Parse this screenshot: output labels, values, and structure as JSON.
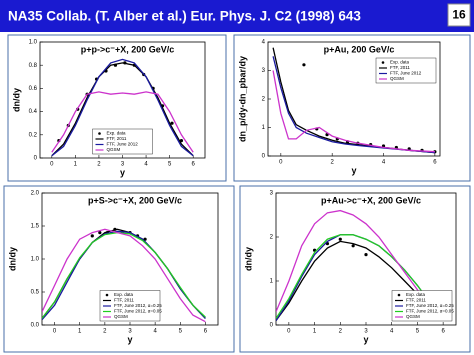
{
  "slide": {
    "title": "NA35 Collab. (T. Alber et al.) Eur. Phys. J. C2 (1998) 643",
    "page": "16"
  },
  "chart_data": [
    {
      "type": "line",
      "title": "p+p->c⁻+X, 200 GeV/c",
      "xlabel": "y",
      "ylabel": "dn/dy",
      "xlim": [
        -0.5,
        6.5
      ],
      "xticks": [
        0,
        1,
        2,
        3,
        4,
        5,
        6
      ],
      "ylim": [
        0,
        1.0
      ],
      "yticks": [
        0,
        {
          "value": 0.2,
          "label": "0.2"
        },
        {
          "value": 0.4,
          "label": "0.4"
        },
        {
          "value": 0.6,
          "label": "0.6"
        },
        {
          "value": 0.8,
          "label": "0.8"
        },
        {
          "value": 1.0,
          "label": "1.0"
        }
      ],
      "legend": "lower center",
      "series": [
        {
          "name": "Exp. data",
          "color": "#000000",
          "style": "points",
          "x": [
            0.3,
            0.7,
            1.1,
            1.5,
            1.9,
            2.3,
            2.7,
            3.1,
            3.5,
            3.9,
            4.3,
            4.7,
            5.1,
            5.5
          ],
          "values": [
            0.15,
            0.28,
            0.42,
            0.55,
            0.68,
            0.75,
            0.8,
            0.82,
            0.8,
            0.72,
            0.6,
            0.45,
            0.3,
            0.15
          ]
        },
        {
          "name": "FTF, 2011",
          "color": "#000000",
          "style": "line",
          "x": [
            0,
            0.5,
            1,
            1.5,
            2,
            2.5,
            3,
            3.5,
            4,
            4.5,
            5,
            5.5,
            6
          ],
          "values": [
            0.02,
            0.12,
            0.3,
            0.52,
            0.7,
            0.8,
            0.82,
            0.8,
            0.7,
            0.52,
            0.3,
            0.12,
            0.02
          ]
        },
        {
          "name": "FTF, June 2012",
          "color": "#1a1aa0",
          "style": "line",
          "x": [
            0,
            0.5,
            1,
            1.5,
            2,
            2.5,
            3,
            3.5,
            4,
            4.5,
            5,
            5.5,
            6
          ],
          "values": [
            0.02,
            0.1,
            0.28,
            0.5,
            0.7,
            0.82,
            0.85,
            0.82,
            0.7,
            0.5,
            0.28,
            0.1,
            0.02
          ]
        },
        {
          "name": "QGSM",
          "color": "#cc33cc",
          "style": "line",
          "x": [
            0,
            0.5,
            1,
            1.5,
            2,
            2.5,
            3,
            3.5,
            4,
            4.5,
            5,
            5.5,
            6
          ],
          "values": [
            0.05,
            0.2,
            0.4,
            0.55,
            0.57,
            0.55,
            0.56,
            0.55,
            0.57,
            0.55,
            0.4,
            0.2,
            0.05
          ]
        }
      ]
    },
    {
      "type": "line",
      "title": "p+Au, 200 GeV/c",
      "xlabel": "y",
      "ylabel": "dn_p/dy-dn_pbar/dy",
      "xlim": [
        -0.5,
        6.2
      ],
      "xticks": [
        0,
        2,
        4,
        6
      ],
      "ylim": [
        0,
        4
      ],
      "yticks": [
        0,
        1,
        2,
        3,
        4
      ],
      "legend": "upper right",
      "series": [
        {
          "name": "Exp. data",
          "color": "#000000",
          "style": "points",
          "x": [
            0.9,
            1.4,
            1.8,
            2.2,
            2.6,
            3,
            3.5,
            4,
            4.5,
            5,
            5.5,
            6
          ],
          "values": [
            3.2,
            0.95,
            0.75,
            0.6,
            0.5,
            0.45,
            0.4,
            0.35,
            0.3,
            0.25,
            0.2,
            0.15
          ]
        },
        {
          "name": "FTF, 2011",
          "color": "#000000",
          "style": "line",
          "x": [
            -0.3,
            0,
            0.3,
            0.6,
            1,
            1.5,
            2,
            2.5,
            3,
            4,
            5,
            6
          ],
          "values": [
            3.8,
            2.6,
            1.6,
            1.1,
            0.9,
            0.7,
            0.55,
            0.45,
            0.4,
            0.3,
            0.2,
            0.12
          ]
        },
        {
          "name": "FTF, June 2012",
          "color": "#1a1aa0",
          "style": "line",
          "x": [
            -0.3,
            0,
            0.3,
            0.6,
            1,
            1.5,
            2,
            2.5,
            3,
            4,
            5,
            6
          ],
          "values": [
            3.5,
            2.4,
            1.5,
            1.0,
            0.8,
            0.65,
            0.5,
            0.42,
            0.37,
            0.28,
            0.2,
            0.12
          ]
        },
        {
          "name": "QGSM",
          "color": "#cc33cc",
          "style": "line",
          "x": [
            -0.3,
            0,
            0.3,
            0.6,
            1,
            1.5,
            2,
            2.5,
            3,
            4,
            5,
            6
          ],
          "values": [
            3.0,
            1.5,
            0.6,
            0.6,
            0.9,
            1.0,
            0.7,
            0.55,
            0.45,
            0.3,
            0.2,
            0.15
          ]
        }
      ]
    },
    {
      "type": "line",
      "title": "p+S->c⁻+X, 200 GeV/c",
      "xlabel": "y",
      "ylabel": "dn/dy",
      "xlim": [
        -0.5,
        6.5
      ],
      "xticks": [
        0,
        1,
        2,
        3,
        4,
        5,
        6
      ],
      "ylim": [
        0,
        2.0
      ],
      "yticks": [
        {
          "value": 0,
          "label": "0.0"
        },
        {
          "value": 0.5,
          "label": "0.5"
        },
        {
          "value": 1.0,
          "label": "1.0"
        },
        {
          "value": 1.5,
          "label": "1.5"
        },
        {
          "value": 2.0,
          "label": "2.0"
        }
      ],
      "legend": "lower center",
      "series": [
        {
          "name": "Exp. data",
          "color": "#000000",
          "style": "points",
          "x": [
            1.5,
            1.8,
            2.1,
            2.4,
            2.7,
            3,
            3.3,
            3.6
          ],
          "values": [
            1.35,
            1.4,
            1.4,
            1.45,
            1.4,
            1.4,
            1.35,
            1.3
          ]
        },
        {
          "name": "FTF, 2011",
          "color": "#000000",
          "style": "line",
          "x": [
            -0.5,
            0,
            0.5,
            1,
            1.5,
            2,
            2.5,
            3,
            3.5,
            4,
            4.5,
            5,
            5.5,
            6
          ],
          "values": [
            0.1,
            0.35,
            0.7,
            1.0,
            1.25,
            1.4,
            1.45,
            1.4,
            1.3,
            1.1,
            0.85,
            0.55,
            0.3,
            0.1
          ]
        },
        {
          "name": "FTF, June 2012, α=0.25",
          "color": "#1a1aa0",
          "style": "line",
          "x": [
            -0.5,
            0,
            0.5,
            1,
            1.5,
            2,
            2.5,
            3,
            3.5,
            4,
            4.5,
            5,
            5.5,
            6
          ],
          "values": [
            0.08,
            0.3,
            0.65,
            1.0,
            1.25,
            1.38,
            1.42,
            1.4,
            1.3,
            1.1,
            0.85,
            0.55,
            0.3,
            0.1
          ]
        },
        {
          "name": "FTF, June 2012, α=0.05",
          "color": "#22cc22",
          "style": "line",
          "x": [
            -0.5,
            0,
            0.5,
            1,
            1.5,
            2,
            2.5,
            3,
            3.5,
            4,
            4.5,
            5,
            5.5,
            6
          ],
          "values": [
            0.1,
            0.35,
            0.7,
            1.02,
            1.25,
            1.37,
            1.4,
            1.38,
            1.28,
            1.1,
            0.85,
            0.57,
            0.3,
            0.12
          ]
        },
        {
          "name": "QGSM",
          "color": "#cc33cc",
          "style": "line",
          "x": [
            -0.5,
            0,
            0.5,
            1,
            1.5,
            2,
            2.5,
            3,
            3.5,
            4,
            4.5,
            5,
            5.5,
            6
          ],
          "values": [
            0.2,
            0.6,
            1.0,
            1.3,
            1.4,
            1.45,
            1.4,
            1.35,
            1.2,
            1.0,
            0.7,
            0.4,
            0.15,
            0.05
          ]
        }
      ]
    },
    {
      "type": "line",
      "title": "p+Au->c⁻+X, 200 GeV/c",
      "xlabel": "y",
      "ylabel": "dn/dy",
      "xlim": [
        -0.5,
        6.5
      ],
      "xticks": [
        0,
        1,
        2,
        3,
        4,
        5,
        6
      ],
      "ylim": [
        0,
        3
      ],
      "yticks": [
        0,
        1,
        2,
        3
      ],
      "legend": "lower right",
      "series": [
        {
          "name": "Exp. data",
          "color": "#000000",
          "style": "points",
          "x": [
            1,
            1.5,
            2,
            2.5,
            3
          ],
          "values": [
            1.7,
            1.85,
            1.95,
            1.8,
            1.6
          ]
        },
        {
          "name": "FTF, 2011",
          "color": "#000000",
          "style": "line",
          "x": [
            -0.5,
            0,
            0.5,
            1,
            1.5,
            2,
            2.5,
            3,
            3.5,
            4,
            4.5,
            5,
            5.5,
            6
          ],
          "values": [
            0.1,
            0.5,
            1.0,
            1.45,
            1.75,
            1.9,
            1.85,
            1.75,
            1.55,
            1.3,
            1.0,
            0.7,
            0.4,
            0.15
          ]
        },
        {
          "name": "FTF, June 2012, α=0.25",
          "color": "#1a1aa0",
          "style": "line",
          "x": [
            -0.5,
            0,
            0.5,
            1,
            1.5,
            2,
            2.5,
            3,
            3.5,
            4,
            4.5,
            5,
            5.5,
            6
          ],
          "values": [
            0.1,
            0.55,
            1.1,
            1.6,
            1.9,
            2.05,
            2.05,
            1.95,
            1.8,
            1.55,
            1.25,
            0.9,
            0.5,
            0.2
          ]
        },
        {
          "name": "FTF, June 2012, α=0.05",
          "color": "#22cc22",
          "style": "line",
          "x": [
            -0.5,
            0,
            0.5,
            1,
            1.5,
            2,
            2.5,
            3,
            3.5,
            4,
            4.5,
            5,
            5.5,
            6
          ],
          "values": [
            0.15,
            0.6,
            1.15,
            1.65,
            1.95,
            2.05,
            2.05,
            1.95,
            1.8,
            1.55,
            1.25,
            0.9,
            0.5,
            0.2
          ]
        },
        {
          "name": "QGSM",
          "color": "#cc33cc",
          "style": "line",
          "x": [
            -0.5,
            0,
            0.5,
            1,
            1.5,
            2,
            2.5,
            3,
            3.5,
            4,
            4.5,
            5,
            5.5,
            6
          ],
          "values": [
            0.3,
            1.0,
            1.8,
            2.3,
            2.55,
            2.6,
            2.5,
            2.3,
            2.0,
            1.6,
            1.2,
            0.8,
            0.4,
            0.15
          ]
        }
      ]
    }
  ]
}
